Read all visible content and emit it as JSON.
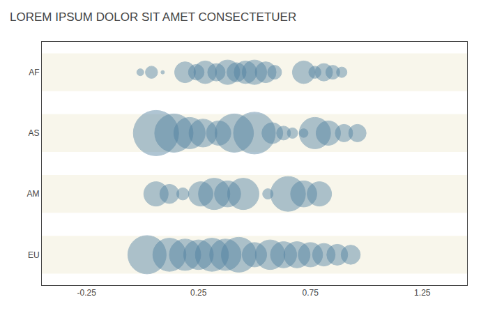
{
  "chart_data": {
    "type": "bubble",
    "title": "LOREM IPSUM DOLOR SIT AMET CONSECTETUER",
    "categories": [
      "AF",
      "AS",
      "AM",
      "EU"
    ],
    "color": "#5080a0",
    "xlim": [
      -0.45,
      1.45
    ],
    "xticks": [
      -0.25,
      0.25,
      0.75,
      1.25
    ],
    "grid": false,
    "series": [
      {
        "name": "AF",
        "x": [
          -0.01,
          0.04,
          0.09,
          0.19,
          0.24,
          0.28,
          0.33,
          0.38,
          0.42,
          0.46,
          0.5,
          0.55,
          0.59,
          0.72,
          0.77,
          0.81,
          0.85,
          0.89
        ],
        "sizes": [
          4,
          7,
          2,
          12,
          9,
          13,
          10,
          14,
          11,
          13,
          14,
          12,
          8,
          13,
          7,
          10,
          8,
          6
        ]
      },
      {
        "name": "AS",
        "x": [
          0.06,
          0.14,
          0.21,
          0.27,
          0.34,
          0.41,
          0.5,
          0.58,
          0.63,
          0.67,
          0.72,
          0.77,
          0.83,
          0.9,
          0.96
        ],
        "sizes": [
          26,
          22,
          18,
          16,
          14,
          22,
          24,
          12,
          8,
          6,
          5,
          18,
          14,
          10,
          10
        ]
      },
      {
        "name": "AM",
        "x": [
          0.06,
          0.12,
          0.18,
          0.26,
          0.32,
          0.38,
          0.45,
          0.56,
          0.65,
          0.72,
          0.79
        ],
        "sizes": [
          14,
          11,
          7,
          14,
          18,
          15,
          18,
          6,
          20,
          15,
          14
        ]
      },
      {
        "name": "EU",
        "x": [
          0.02,
          0.12,
          0.19,
          0.25,
          0.31,
          0.37,
          0.43,
          0.5,
          0.57,
          0.63,
          0.69,
          0.75,
          0.81,
          0.87,
          0.93
        ],
        "sizes": [
          22,
          19,
          18,
          17,
          19,
          18,
          20,
          14,
          17,
          15,
          15,
          14,
          13,
          12,
          11
        ]
      }
    ]
  }
}
